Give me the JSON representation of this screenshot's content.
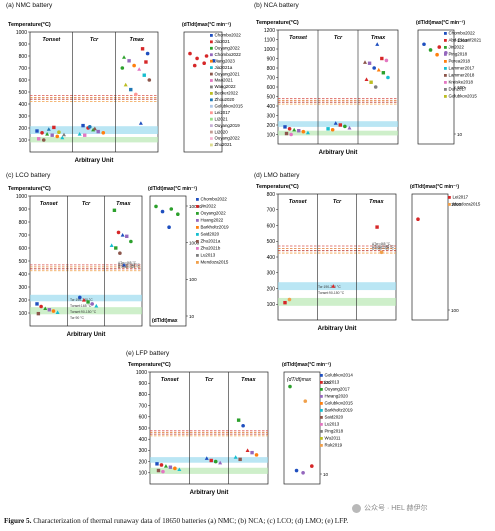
{
  "caption": {
    "label": "Figure 5.",
    "text": "Characterization of thermal runaway data of 18650 batteries (a) NMC; (b) NCA; (c) LCO; (d) LMO; (e) LFP."
  },
  "watermark": {
    "text": "公众号 · HEL 赫伊尔"
  },
  "chart_data": [
    {
      "id": "nmc",
      "type": "scatter",
      "title": "(a) NMC battery",
      "ylabel": "Temperature(°C)",
      "rate_label": "(dT/dt)max(°C min⁻¹)",
      "xlabel": "Arbitrary Unit",
      "ylim": [
        0,
        1000
      ],
      "yticks": [
        100,
        200,
        300,
        400,
        500,
        600,
        700,
        800,
        900,
        1000
      ],
      "rate_ticks": [],
      "rate_ylim": [
        0,
        1000
      ],
      "columns": [
        "Tonset",
        "Tcr",
        "Tmax"
      ],
      "bands": [
        {
          "from": 150,
          "to": 215,
          "color": "#9ddcf0"
        },
        {
          "from": 80,
          "to": 125,
          "color": "#b9e8b3"
        }
      ],
      "thresholds": [
        {
          "y": 470,
          "color": "#d9534f"
        },
        {
          "y": 455,
          "color": "#e07b30"
        },
        {
          "y": 440,
          "color": "#c0392b"
        },
        {
          "y": 420,
          "color": "#f0a04b"
        }
      ],
      "legend": [
        "Chombo2022",
        "Jia2021",
        "Ouyang2022",
        "Chombo2022",
        "Jiang2023",
        "Jia2021a",
        "Ouyang2021",
        "Mao2021",
        "Wang2022",
        "Becker2022",
        "Zhou2020",
        "Golubkov2015",
        "Lei2017",
        "Li2021",
        "Ouyang2019",
        "Li2020",
        "Ouyang2022",
        "Zhu2021"
      ],
      "legend_colors": [
        "#1f4fbf",
        "#d62728",
        "#2ca02c",
        "#9467bd",
        "#ff7f0e",
        "#17becf",
        "#8c564b",
        "#e377c2",
        "#7f7f7f",
        "#bcbd22",
        "#1f77b4",
        "#aec7e8",
        "#ff9896",
        "#98df8a",
        "#c5b0d5",
        "#c49c94",
        "#f7b6d2",
        "#dbdb8d"
      ],
      "points": [
        {
          "col": 0,
          "y": 175,
          "c": "#1f4fbf"
        },
        {
          "col": 0,
          "y": 160,
          "c": "#d62728"
        },
        {
          "col": 0,
          "y": 150,
          "c": "#2ca02c"
        },
        {
          "col": 0,
          "y": 140,
          "c": "#9467bd"
        },
        {
          "col": 0,
          "y": 130,
          "c": "#ff7f0e"
        },
        {
          "col": 0,
          "y": 120,
          "c": "#17becf"
        },
        {
          "col": 0,
          "y": 110,
          "c": "#e377c2"
        },
        {
          "col": 0,
          "y": 100,
          "c": "#8c564b"
        },
        {
          "col": 0,
          "y": 190,
          "c": "#1f77b4"
        },
        {
          "col": 0,
          "y": 205,
          "c": "#d62728"
        },
        {
          "col": 0,
          "y": 165,
          "c": "#bcbd22"
        },
        {
          "col": 0,
          "y": 145,
          "c": "#7f7f7f"
        },
        {
          "col": 1,
          "y": 220,
          "c": "#1f4fbf"
        },
        {
          "col": 1,
          "y": 200,
          "c": "#d62728"
        },
        {
          "col": 1,
          "y": 185,
          "c": "#2ca02c"
        },
        {
          "col": 1,
          "y": 170,
          "c": "#9467bd"
        },
        {
          "col": 1,
          "y": 160,
          "c": "#ff7f0e"
        },
        {
          "col": 1,
          "y": 150,
          "c": "#17becf"
        },
        {
          "col": 1,
          "y": 140,
          "c": "#e377c2"
        },
        {
          "col": 1,
          "y": 210,
          "c": "#1f77b4"
        },
        {
          "col": 1,
          "y": 195,
          "c": "#8c564b"
        },
        {
          "col": 2,
          "y": 860,
          "c": "#d62728"
        },
        {
          "col": 2,
          "y": 820,
          "c": "#1f4fbf"
        },
        {
          "col": 2,
          "y": 790,
          "c": "#2ca02c"
        },
        {
          "col": 2,
          "y": 760,
          "c": "#9467bd"
        },
        {
          "col": 2,
          "y": 720,
          "c": "#ff7f0e"
        },
        {
          "col": 2,
          "y": 690,
          "c": "#e377c2"
        },
        {
          "col": 2,
          "y": 640,
          "c": "#17becf"
        },
        {
          "col": 2,
          "y": 600,
          "c": "#8c564b"
        },
        {
          "col": 2,
          "y": 560,
          "c": "#bcbd22"
        },
        {
          "col": 2,
          "y": 520,
          "c": "#1f77b4"
        },
        {
          "col": 2,
          "y": 480,
          "c": "#ff9896"
        },
        {
          "col": 2,
          "y": 240,
          "c": "#1f4fbf"
        },
        {
          "col": 2,
          "y": 750,
          "c": "#d62728"
        },
        {
          "col": 2,
          "y": 700,
          "c": "#2ca02c"
        }
      ],
      "rate_points": [
        {
          "y": 820,
          "c": "#d62728"
        },
        {
          "y": 800,
          "c": "#d62728"
        },
        {
          "y": 780,
          "c": "#d62728"
        },
        {
          "y": 760,
          "c": "#1f4fbf"
        },
        {
          "y": 740,
          "c": "#d62728"
        },
        {
          "y": 720,
          "c": "#d62728"
        }
      ]
    },
    {
      "id": "nca",
      "type": "scatter",
      "title": "(b) NCA battery",
      "ylabel": "Temperature(°C)",
      "rate_label": "(dT/dt)max(°C min⁻¹)",
      "xlabel": "Arbitrary Unit",
      "ylim": [
        0,
        1200
      ],
      "yticks": [
        100,
        200,
        300,
        400,
        500,
        600,
        700,
        800,
        900,
        1000,
        1100,
        1200
      ],
      "rate_ticks": [
        "1000",
        "100",
        "10"
      ],
      "rate_ylim": [
        0,
        1200
      ],
      "columns": [
        "Tonset",
        "Tcr",
        "Tmax"
      ],
      "bands": [
        {
          "from": 180,
          "to": 240,
          "color": "#9ddcf0"
        },
        {
          "from": 90,
          "to": 140,
          "color": "#b9e8b3"
        }
      ],
      "thresholds": [
        {
          "y": 480,
          "color": "#d9534f"
        },
        {
          "y": 460,
          "color": "#e07b30"
        },
        {
          "y": 440,
          "color": "#c0392b"
        },
        {
          "y": 420,
          "color": "#f0a04b"
        }
      ],
      "legend": [
        "Chombo2022",
        "Abd-El-Latif2021",
        "Jin2022",
        "Ping2018",
        "Perea2018",
        "Lammer2017",
        "Lammer2018",
        "Kreiske2018",
        "Duh2017",
        "Golubkov2015"
      ],
      "legend_colors": [
        "#1f4fbf",
        "#d62728",
        "#2ca02c",
        "#9467bd",
        "#ff7f0e",
        "#17becf",
        "#8c564b",
        "#e377c2",
        "#7f7f7f",
        "#bcbd22"
      ],
      "points": [
        {
          "col": 0,
          "y": 180,
          "c": "#1f4fbf"
        },
        {
          "col": 0,
          "y": 160,
          "c": "#d62728"
        },
        {
          "col": 0,
          "y": 150,
          "c": "#2ca02c"
        },
        {
          "col": 0,
          "y": 140,
          "c": "#9467bd"
        },
        {
          "col": 0,
          "y": 130,
          "c": "#ff7f0e"
        },
        {
          "col": 0,
          "y": 120,
          "c": "#17becf"
        },
        {
          "col": 0,
          "y": 110,
          "c": "#8c564b"
        },
        {
          "col": 0,
          "y": 100,
          "c": "#e377c2"
        },
        {
          "col": 1,
          "y": 220,
          "c": "#1f4fbf"
        },
        {
          "col": 1,
          "y": 200,
          "c": "#d62728"
        },
        {
          "col": 1,
          "y": 185,
          "c": "#2ca02c"
        },
        {
          "col": 1,
          "y": 170,
          "c": "#9467bd"
        },
        {
          "col": 1,
          "y": 160,
          "c": "#17becf"
        },
        {
          "col": 1,
          "y": 150,
          "c": "#ff7f0e"
        },
        {
          "col": 2,
          "y": 1050,
          "c": "#1f4fbf"
        },
        {
          "col": 2,
          "y": 900,
          "c": "#d62728"
        },
        {
          "col": 2,
          "y": 880,
          "c": "#e377c2"
        },
        {
          "col": 2,
          "y": 860,
          "c": "#8c564b"
        },
        {
          "col": 2,
          "y": 850,
          "c": "#9467bd"
        },
        {
          "col": 2,
          "y": 800,
          "c": "#1f4fbf"
        },
        {
          "col": 2,
          "y": 780,
          "c": "#ff7f0e"
        },
        {
          "col": 2,
          "y": 750,
          "c": "#2ca02c"
        },
        {
          "col": 2,
          "y": 700,
          "c": "#17becf"
        },
        {
          "col": 2,
          "y": 680,
          "c": "#d62728"
        },
        {
          "col": 2,
          "y": 650,
          "c": "#bcbd22"
        },
        {
          "col": 2,
          "y": 600,
          "c": "#7f7f7f"
        }
      ],
      "rate_points": [
        {
          "y": 1050,
          "c": "#1f4fbf"
        },
        {
          "y": 1020,
          "c": "#d62728"
        },
        {
          "y": 990,
          "c": "#2ca02c"
        },
        {
          "y": 960,
          "c": "#9467bd"
        },
        {
          "y": 940,
          "c": "#ff7f0e"
        }
      ]
    },
    {
      "id": "lco",
      "type": "scatter",
      "title": "(c) LCO battery",
      "ylabel": "Temperature(°C)",
      "rate_label": "(dT/dt)max(°C min⁻¹)",
      "xlabel": "Arbitrary Unit",
      "ylim": [
        0,
        1000
      ],
      "yticks": [
        100,
        200,
        300,
        400,
        500,
        600,
        700,
        800,
        900,
        1000
      ],
      "rate_ticks": [
        "10000",
        "1000",
        "100",
        "10"
      ],
      "rate_ylim": [
        0,
        1000
      ],
      "rate_bottom": "(dT/dt)max",
      "columns": [
        "Tonset",
        "Tcr",
        "Tmax"
      ],
      "bands": [
        {
          "from": 190,
          "to": 240,
          "color": "#9ddcf0"
        },
        {
          "from": 90,
          "to": 145,
          "color": "#b9e8b3"
        }
      ],
      "band_labels": [
        "Tcr:190-240 °C",
        "Tonset:165 °C",
        "Tonset:90-150 °C",
        "Tcr:90 °C"
      ],
      "thresholds": [
        {
          "y": 470,
          "color": "#d9534f"
        },
        {
          "y": 455,
          "color": "#e07b30"
        },
        {
          "y": 440,
          "color": "#c0392b"
        },
        {
          "y": 425,
          "color": "#f0a04b"
        }
      ],
      "threshold_labels": [
        "ΔTcr=465 °C",
        "ΔTmax=445 °C",
        "ΔTmax=425 °C"
      ],
      "legend": [
        "Chombo2022",
        "Jin2022",
        "Ouyang2022",
        "Huang2022",
        "Barkholtz2019",
        "Said2020",
        "Zhu2021a",
        "Zhu2021b",
        "Lu2013",
        "Mendoza2015"
      ],
      "legend_colors": [
        "#1f4fbf",
        "#d62728",
        "#2ca02c",
        "#9467bd",
        "#ff7f0e",
        "#17becf",
        "#8c564b",
        "#e377c2",
        "#7f7f7f",
        "#f0a04b"
      ],
      "points": [
        {
          "col": 0,
          "y": 170,
          "c": "#1f4fbf"
        },
        {
          "col": 0,
          "y": 150,
          "c": "#d62728"
        },
        {
          "col": 0,
          "y": 135,
          "c": "#2ca02c"
        },
        {
          "col": 0,
          "y": 125,
          "c": "#9467bd"
        },
        {
          "col": 0,
          "y": 115,
          "c": "#ff7f0e"
        },
        {
          "col": 0,
          "y": 105,
          "c": "#17becf"
        },
        {
          "col": 0,
          "y": 95,
          "c": "#8c564b"
        },
        {
          "col": 1,
          "y": 220,
          "c": "#1f4fbf"
        },
        {
          "col": 1,
          "y": 200,
          "c": "#d62728"
        },
        {
          "col": 1,
          "y": 185,
          "c": "#2ca02c"
        },
        {
          "col": 1,
          "y": 170,
          "c": "#9467bd"
        },
        {
          "col": 1,
          "y": 155,
          "c": "#17becf"
        },
        {
          "col": 2,
          "y": 890,
          "c": "#2ca02c"
        },
        {
          "col": 2,
          "y": 720,
          "c": "#d62728"
        },
        {
          "col": 2,
          "y": 700,
          "c": "#1f4fbf"
        },
        {
          "col": 2,
          "y": 690,
          "c": "#9467bd"
        },
        {
          "col": 2,
          "y": 650,
          "c": "#2ca02c"
        },
        {
          "col": 2,
          "y": 620,
          "c": "#17becf"
        },
        {
          "col": 2,
          "y": 600,
          "c": "#2ca02c"
        },
        {
          "col": 2,
          "y": 560,
          "c": "#8c564b"
        },
        {
          "col": 2,
          "y": 470,
          "c": "#1f4fbf"
        }
      ],
      "rate_points": [
        {
          "y": 920,
          "c": "#2ca02c"
        },
        {
          "y": 900,
          "c": "#2ca02c"
        },
        {
          "y": 880,
          "c": "#1f4fbf"
        },
        {
          "y": 860,
          "c": "#2ca02c"
        },
        {
          "y": 760,
          "c": "#1f4fbf"
        }
      ]
    },
    {
      "id": "lmo",
      "type": "scatter",
      "title": "(d) LMO battery",
      "ylabel": "Temperature(°C)",
      "rate_label": "(dT/dt)max(°C min⁻¹)",
      "xlabel": "Arbitrary Unit",
      "ylim": [
        0,
        800
      ],
      "yticks": [
        100,
        200,
        300,
        400,
        500,
        600,
        700,
        800
      ],
      "rate_ticks": [
        "1000",
        "100"
      ],
      "rate_ylim": [
        0,
        800
      ],
      "columns": [
        "Tonset",
        "Tcr",
        "Tmax"
      ],
      "bands": [
        {
          "from": 190,
          "to": 240,
          "color": "#9ddcf0"
        },
        {
          "from": 90,
          "to": 140,
          "color": "#b9e8b3"
        }
      ],
      "band_labels": [
        "Tcr:190-240 °C",
        "Tonset:90-150 °C"
      ],
      "thresholds": [
        {
          "y": 470,
          "color": "#d9534f"
        },
        {
          "y": 455,
          "color": "#e07b30"
        },
        {
          "y": 440,
          "color": "#c0392b"
        },
        {
          "y": 425,
          "color": "#f0a04b"
        }
      ],
      "threshold_labels": [
        "ΔTcr=465 °C",
        "ΔTmax=445 °C",
        "ΔTmax=425 °C"
      ],
      "legend": [
        "Lei2017",
        "Mendoza2015"
      ],
      "legend_colors": [
        "#d62728",
        "#f0a04b"
      ],
      "points": [
        {
          "col": 0,
          "y": 110,
          "c": "#d62728"
        },
        {
          "col": 0,
          "y": 130,
          "c": "#f0a04b"
        },
        {
          "col": 1,
          "y": 215,
          "c": "#d62728"
        },
        {
          "col": 2,
          "y": 590,
          "c": "#d62728"
        },
        {
          "col": 2,
          "y": 430,
          "c": "#f0a04b"
        }
      ],
      "rate_points": [
        {
          "y": 640,
          "c": "#d62728"
        }
      ]
    },
    {
      "id": "lfp",
      "type": "scatter",
      "title": "(e) LFP battery",
      "ylabel": "Temperature(°C)",
      "rate_label": "(dT/dt)max(°C min⁻¹)",
      "rate_sub": "(dT/dt)max",
      "xlabel": "Arbitrary Unit",
      "ylim": [
        0,
        1000
      ],
      "yticks": [
        100,
        200,
        300,
        400,
        500,
        600,
        700,
        800,
        900,
        1000
      ],
      "rate_ticks": [
        "100",
        "10"
      ],
      "rate_ylim": [
        0,
        1000
      ],
      "columns": [
        "Tonset",
        "Tcr",
        "Tmax"
      ],
      "bands": [
        {
          "from": 190,
          "to": 240,
          "color": "#9ddcf0"
        },
        {
          "from": 90,
          "to": 145,
          "color": "#b9e8b3"
        }
      ],
      "thresholds": [
        {
          "y": 475,
          "color": "#d9534f"
        },
        {
          "y": 460,
          "color": "#e07b30"
        },
        {
          "y": 445,
          "color": "#c0392b"
        },
        {
          "y": 430,
          "color": "#f0a04b"
        }
      ],
      "legend": [
        "Golubkov2014",
        "Lu2013",
        "Ouyang2017",
        "Hwang2020",
        "Golubkov2015",
        "Barkholtz2019",
        "Said2020",
        "Lu2013",
        "Ping2018",
        "Wu2011",
        "Ruk2019"
      ],
      "legend_colors": [
        "#1f4fbf",
        "#d62728",
        "#2ca02c",
        "#9467bd",
        "#ff7f0e",
        "#17becf",
        "#8c564b",
        "#e377c2",
        "#7f7f7f",
        "#bcbd22",
        "#f0a04b"
      ],
      "points": [
        {
          "col": 0,
          "y": 180,
          "c": "#1f4fbf"
        },
        {
          "col": 0,
          "y": 170,
          "c": "#d62728"
        },
        {
          "col": 0,
          "y": 160,
          "c": "#2ca02c"
        },
        {
          "col": 0,
          "y": 150,
          "c": "#9467bd"
        },
        {
          "col": 0,
          "y": 140,
          "c": "#ff7f0e"
        },
        {
          "col": 0,
          "y": 130,
          "c": "#17becf"
        },
        {
          "col": 0,
          "y": 120,
          "c": "#8c564b"
        },
        {
          "col": 0,
          "y": 110,
          "c": "#e377c2"
        },
        {
          "col": 1,
          "y": 230,
          "c": "#1f4fbf"
        },
        {
          "col": 1,
          "y": 210,
          "c": "#d62728"
        },
        {
          "col": 1,
          "y": 200,
          "c": "#2ca02c"
        },
        {
          "col": 1,
          "y": 190,
          "c": "#9467bd"
        },
        {
          "col": 2,
          "y": 570,
          "c": "#2ca02c"
        },
        {
          "col": 2,
          "y": 520,
          "c": "#1f4fbf"
        },
        {
          "col": 2,
          "y": 300,
          "c": "#d62728"
        },
        {
          "col": 2,
          "y": 280,
          "c": "#9467bd"
        },
        {
          "col": 2,
          "y": 260,
          "c": "#ff7f0e"
        },
        {
          "col": 2,
          "y": 240,
          "c": "#17becf"
        },
        {
          "col": 2,
          "y": 220,
          "c": "#8c564b"
        }
      ],
      "rate_points": [
        {
          "y": 870,
          "c": "#2ca02c"
        },
        {
          "y": 740,
          "c": "#f0a04b"
        },
        {
          "y": 120,
          "c": "#1f4fbf"
        },
        {
          "y": 160,
          "c": "#d62728"
        },
        {
          "y": 100,
          "c": "#9467bd"
        }
      ]
    }
  ]
}
